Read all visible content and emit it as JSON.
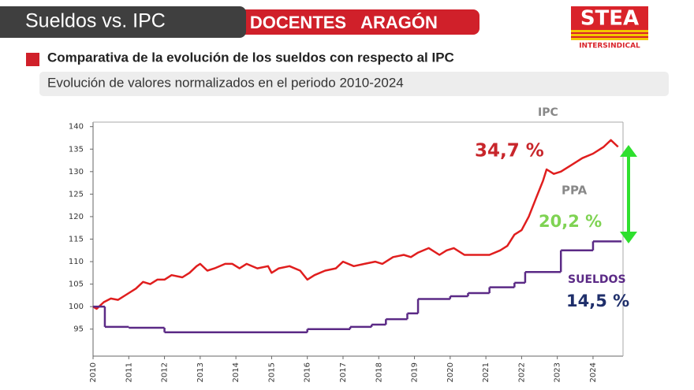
{
  "header": {
    "tab": "Sueldos vs. IPC",
    "tag1": "DOCENTES",
    "tag2": "ARAGÓN",
    "logo": "STEA",
    "logo_sub": "INTERSINDICAL"
  },
  "chart_data": {
    "type": "line",
    "title": "Comparativa de la evolución de los sueldos con respecto al IPC",
    "subtitle": "Evolución de valores normalizados en el periodo 2010-2024",
    "xlim": [
      2010,
      2024.84
    ],
    "xticks": [
      2010,
      2011,
      2012,
      2013,
      2014,
      2015,
      2016,
      2017,
      2018,
      2019,
      2020,
      2021,
      2022,
      2023,
      2024
    ],
    "ylim": [
      89,
      141
    ],
    "yticks": [
      95,
      100,
      105,
      110,
      115,
      120,
      125,
      130,
      135,
      140
    ],
    "series": [
      {
        "name": "IPC",
        "color": "#e01e1e",
        "x": [
          2010.0,
          2010.1,
          2010.3,
          2010.5,
          2010.7,
          2011.0,
          2011.2,
          2011.4,
          2011.6,
          2011.8,
          2012.0,
          2012.2,
          2012.5,
          2012.7,
          2012.9,
          2013.0,
          2013.2,
          2013.4,
          2013.7,
          2013.9,
          2014.1,
          2014.3,
          2014.6,
          2014.9,
          2015.0,
          2015.2,
          2015.5,
          2015.8,
          2016.0,
          2016.2,
          2016.5,
          2016.8,
          2017.0,
          2017.3,
          2017.6,
          2017.9,
          2018.1,
          2018.4,
          2018.7,
          2018.9,
          2019.1,
          2019.4,
          2019.7,
          2019.9,
          2020.1,
          2020.4,
          2020.7,
          2020.9,
          2021.1,
          2021.4,
          2021.6,
          2021.8,
          2022.0,
          2022.2,
          2022.4,
          2022.6,
          2022.7,
          2022.9,
          2023.1,
          2023.4,
          2023.7,
          2024.0,
          2024.3,
          2024.5,
          2024.7
        ],
        "values": [
          100,
          99.5,
          101,
          101.8,
          101.5,
          103,
          104,
          105.5,
          105,
          106,
          106,
          107,
          106.5,
          107.5,
          109,
          109.5,
          108,
          108.5,
          109.5,
          109.5,
          108.5,
          109.5,
          108.5,
          109,
          107.5,
          108.5,
          109,
          108,
          106,
          107,
          108,
          108.5,
          110,
          109,
          109.5,
          110,
          109.5,
          111,
          111.5,
          111,
          112,
          113,
          111.5,
          112.5,
          113,
          111.5,
          111.5,
          111.5,
          111.5,
          112.5,
          113.5,
          116,
          117,
          120,
          124,
          128,
          130.5,
          129.5,
          130,
          131.5,
          133,
          134,
          135.5,
          137,
          135.5
        ]
      },
      {
        "name": "SUELDOS",
        "color": "#5b2a86",
        "step": true,
        "x": [
          2010,
          2010.33,
          2011,
          2012,
          2016,
          2017.2,
          2017.8,
          2018.2,
          2018.8,
          2019.1,
          2020,
          2020.5,
          2021.1,
          2021.8,
          2022.1,
          2023.1,
          2024.0,
          2024.8
        ],
        "values": [
          100,
          95.5,
          95.3,
          94.3,
          95,
          95.5,
          96,
          97.2,
          98.5,
          101.7,
          102.3,
          103,
          104.3,
          105.3,
          107.7,
          112.5,
          114.5,
          114.5
        ]
      }
    ],
    "annotations": {
      "ipc_label": "IPC",
      "ipc_value": "34,7 %",
      "ppa_label": "PPA",
      "ppa_value": "20,2 %",
      "sueldos_value": "14,5 %"
    }
  }
}
